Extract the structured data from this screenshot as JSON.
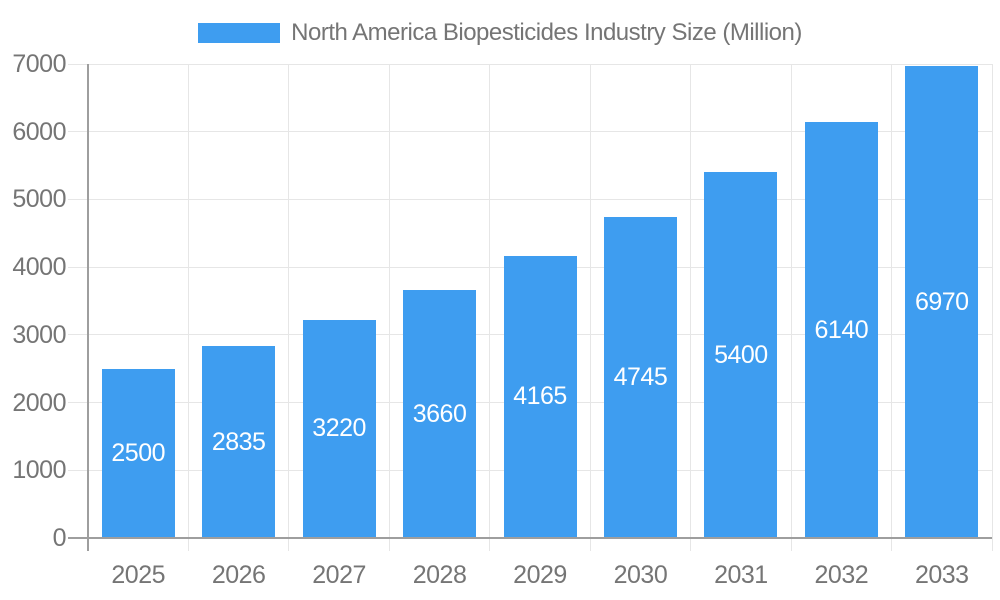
{
  "chart_data": {
    "type": "bar",
    "title": "North America Biopesticides Industry Size (Million)",
    "categories": [
      "2025",
      "2026",
      "2027",
      "2028",
      "2029",
      "2030",
      "2031",
      "2032",
      "2033"
    ],
    "values": [
      2500,
      2835,
      3220,
      3660,
      4165,
      4745,
      5400,
      6140,
      6970
    ],
    "series_name": "North America Biopesticides Industry Size (Million)",
    "xlabel": "",
    "ylabel": "",
    "ylim": [
      0,
      7000
    ],
    "yticks": [
      0,
      1000,
      2000,
      3000,
      4000,
      5000,
      6000,
      7000
    ],
    "grid": true,
    "legend_position": "top",
    "bar_color": "#3E9DF0",
    "bar_label_color": "#FFFFFF",
    "axis_text_color": "#757575",
    "gridline_color": "#E6E6E6",
    "axis_line_color": "#9E9E9E"
  }
}
